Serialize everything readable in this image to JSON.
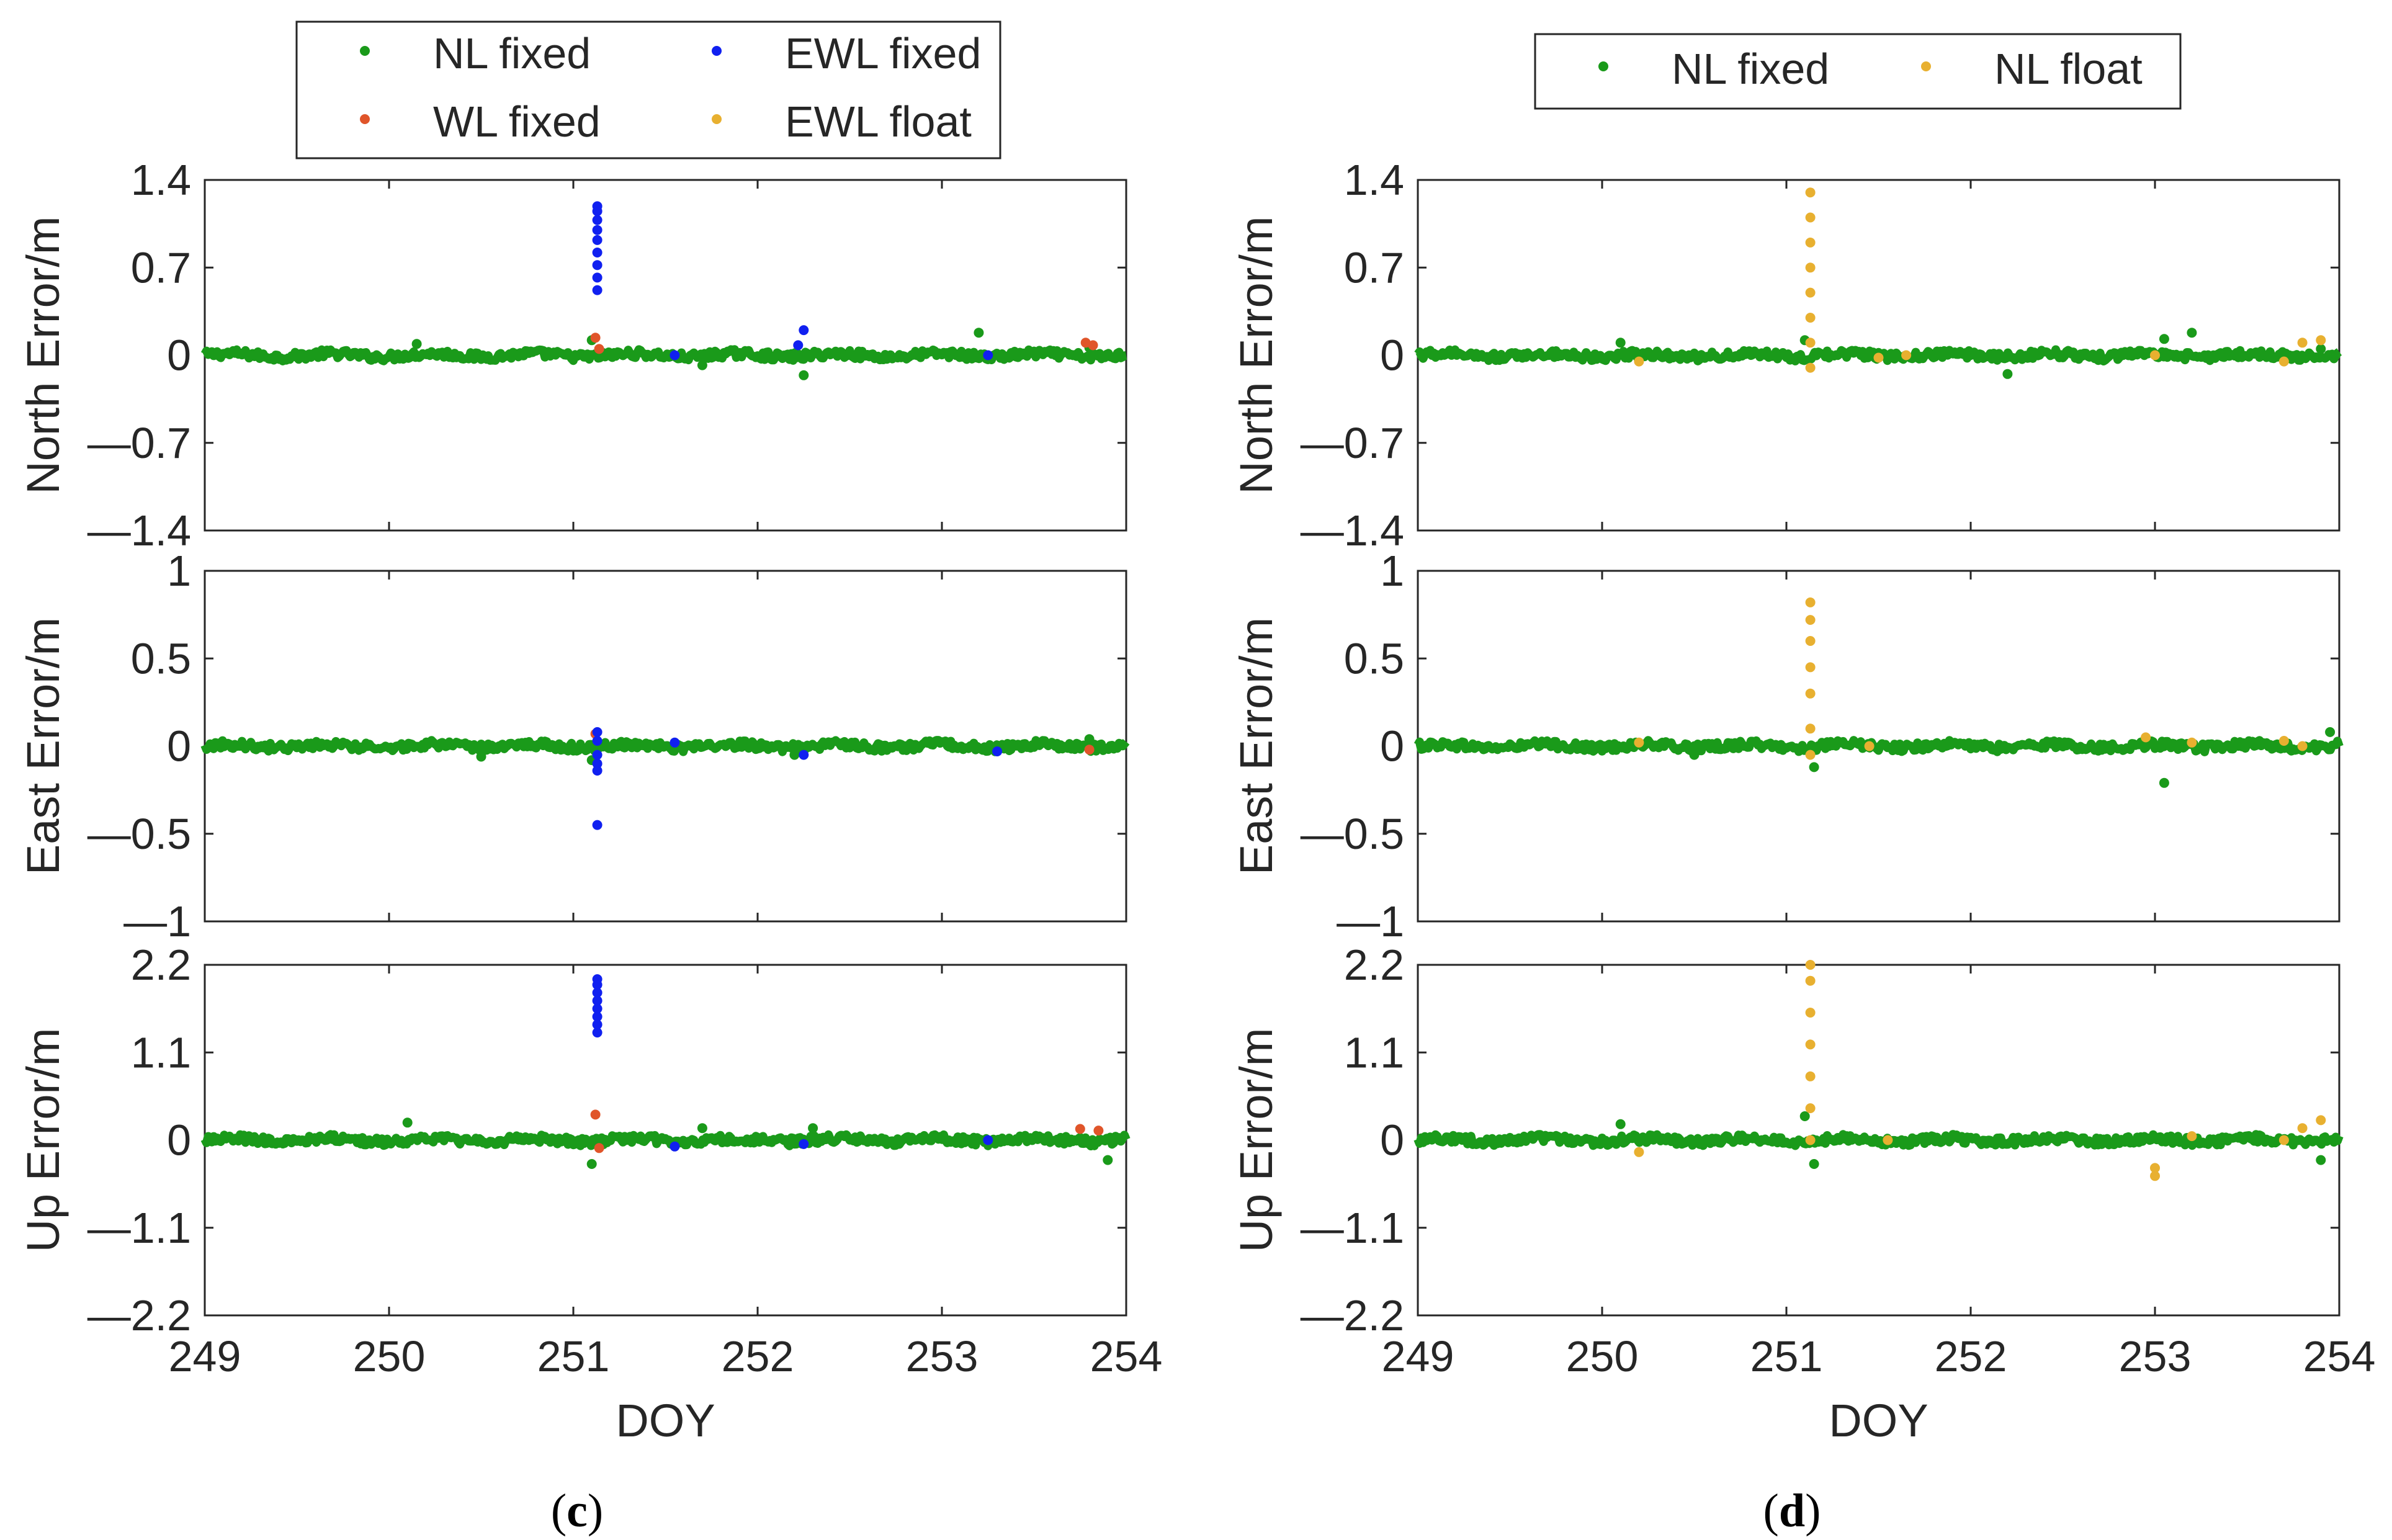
{
  "figure": {
    "captions": [
      "(",
      "c",
      ")",
      "(",
      "d",
      ")"
    ]
  },
  "series_colors": {
    "NL fixed": "#1a9a1a",
    "WL fixed": "#e0552a",
    "EWL fixed": "#1020f0",
    "EWL float": "#e8b030",
    "NL float": "#e8b030"
  },
  "chart_data": [
    {
      "id": "c",
      "type": "scatter",
      "caption": "c",
      "legend": [
        "NL fixed",
        "WL fixed",
        "EWL fixed",
        "EWL float"
      ],
      "xlabel": "DOY",
      "xlim": [
        249,
        254
      ],
      "xticks": [
        "249",
        "250",
        "251",
        "252",
        "253",
        "254"
      ],
      "panels": [
        {
          "ylabel": "North Error/m",
          "ylim": [
            -1.4,
            1.4
          ],
          "yticks": [
            "1.4",
            "0.7",
            "0",
            "—0.7",
            "—1.4"
          ],
          "series": [
            {
              "name": "NL fixed",
              "points": [
                [
                  250.15,
                  0.09
                ],
                [
                  251.1,
                  0.12
                ],
                [
                  251.7,
                  -0.08
                ],
                [
                  252.25,
                  -0.16
                ],
                [
                  253.2,
                  0.18
                ],
                [
                  253.8,
                  0.06
                ]
              ]
            },
            {
              "name": "WL fixed",
              "points": [
                [
                  251.12,
                  0.14
                ],
                [
                  251.14,
                  0.05
                ],
                [
                  253.78,
                  0.1
                ],
                [
                  253.82,
                  0.08
                ]
              ]
            },
            {
              "name": "EWL fixed",
              "points": [
                [
                  251.13,
                  0.52
                ],
                [
                  251.13,
                  0.62
                ],
                [
                  251.13,
                  0.72
                ],
                [
                  251.13,
                  0.82
                ],
                [
                  251.13,
                  0.92
                ],
                [
                  251.13,
                  1.0
                ],
                [
                  251.13,
                  1.08
                ],
                [
                  251.13,
                  1.15
                ],
                [
                  251.13,
                  1.19
                ],
                [
                  251.55,
                  0.0
                ],
                [
                  252.25,
                  0.2
                ],
                [
                  252.22,
                  0.08
                ],
                [
                  253.25,
                  0.0
                ]
              ]
            }
          ]
        },
        {
          "ylabel": "East Error/m",
          "ylim": [
            -1,
            1
          ],
          "yticks": [
            "1",
            "0.5",
            "0",
            "—0.5",
            "—1"
          ],
          "series": [
            {
              "name": "NL fixed",
              "points": [
                [
                  250.5,
                  -0.06
                ],
                [
                  251.1,
                  -0.08
                ],
                [
                  252.2,
                  -0.05
                ],
                [
                  253.8,
                  0.04
                ]
              ]
            },
            {
              "name": "WL fixed",
              "points": [
                [
                  251.12,
                  0.07
                ],
                [
                  253.8,
                  -0.02
                ]
              ]
            },
            {
              "name": "EWL fixed",
              "points": [
                [
                  251.13,
                  0.08
                ],
                [
                  251.13,
                  0.03
                ],
                [
                  251.13,
                  -0.05
                ],
                [
                  251.13,
                  -0.1
                ],
                [
                  251.13,
                  -0.14
                ],
                [
                  251.13,
                  -0.45
                ],
                [
                  251.55,
                  0.02
                ],
                [
                  252.25,
                  -0.05
                ],
                [
                  253.3,
                  -0.03
                ]
              ]
            }
          ]
        },
        {
          "ylabel": "Up Error/m",
          "ylim": [
            -2.2,
            2.2
          ],
          "yticks": [
            "2.2",
            "1.1",
            "0",
            "—1.1",
            "—2.2"
          ],
          "series": [
            {
              "name": "NL fixed",
              "points": [
                [
                  250.1,
                  0.22
                ],
                [
                  251.1,
                  -0.3
                ],
                [
                  251.7,
                  0.15
                ],
                [
                  252.3,
                  0.15
                ],
                [
                  253.9,
                  -0.25
                ]
              ]
            },
            {
              "name": "WL fixed",
              "points": [
                [
                  251.12,
                  0.32
                ],
                [
                  251.14,
                  -0.1
                ],
                [
                  253.75,
                  0.14
                ],
                [
                  253.85,
                  0.12
                ]
              ]
            },
            {
              "name": "EWL fixed",
              "points": [
                [
                  251.13,
                  1.35
                ],
                [
                  251.13,
                  1.45
                ],
                [
                  251.13,
                  1.55
                ],
                [
                  251.13,
                  1.65
                ],
                [
                  251.13,
                  1.75
                ],
                [
                  251.13,
                  1.85
                ],
                [
                  251.13,
                  1.95
                ],
                [
                  251.13,
                  2.02
                ],
                [
                  251.55,
                  -0.08
                ],
                [
                  252.25,
                  -0.05
                ],
                [
                  253.25,
                  0.0
                ]
              ]
            }
          ]
        }
      ]
    },
    {
      "id": "d",
      "type": "scatter",
      "caption": "d",
      "legend": [
        "NL fixed",
        "NL float"
      ],
      "xlabel": "DOY",
      "xlim": [
        249,
        254
      ],
      "xticks": [
        "249",
        "250",
        "251",
        "252",
        "253",
        "254"
      ],
      "panels": [
        {
          "ylabel": "North Error/m",
          "ylim": [
            -1.4,
            1.4
          ],
          "yticks": [
            "1.4",
            "0.7",
            "0",
            "—0.7",
            "—1.4"
          ],
          "series": [
            {
              "name": "NL fixed",
              "points": [
                [
                  250.1,
                  0.1
                ],
                [
                  251.1,
                  0.12
                ],
                [
                  252.2,
                  -0.15
                ],
                [
                  253.05,
                  0.13
                ],
                [
                  253.2,
                  0.18
                ],
                [
                  253.9,
                  0.05
                ]
              ]
            },
            {
              "name": "NL float",
              "points": [
                [
                  250.2,
                  -0.05
                ],
                [
                  251.13,
                  -0.1
                ],
                [
                  251.13,
                  0.1
                ],
                [
                  251.13,
                  0.3
                ],
                [
                  251.13,
                  0.5
                ],
                [
                  251.13,
                  0.7
                ],
                [
                  251.13,
                  0.9
                ],
                [
                  251.13,
                  1.1
                ],
                [
                  251.13,
                  1.3
                ],
                [
                  251.5,
                  -0.02
                ],
                [
                  251.65,
                  0.0
                ],
                [
                  253.0,
                  0.0
                ],
                [
                  253.7,
                  -0.05
                ],
                [
                  253.8,
                  0.1
                ],
                [
                  253.9,
                  0.12
                ]
              ]
            }
          ]
        },
        {
          "ylabel": "East Error/m",
          "ylim": [
            -1,
            1
          ],
          "yticks": [
            "1",
            "0.5",
            "0",
            "—0.5",
            "—1"
          ],
          "series": [
            {
              "name": "NL fixed",
              "points": [
                [
                  250.5,
                  -0.05
                ],
                [
                  251.15,
                  -0.12
                ],
                [
                  253.05,
                  -0.21
                ],
                [
                  253.95,
                  0.08
                ]
              ]
            },
            {
              "name": "NL float",
              "points": [
                [
                  250.2,
                  0.02
                ],
                [
                  251.13,
                  -0.05
                ],
                [
                  251.13,
                  0.1
                ],
                [
                  251.13,
                  0.3
                ],
                [
                  251.13,
                  0.45
                ],
                [
                  251.13,
                  0.6
                ],
                [
                  251.13,
                  0.72
                ],
                [
                  251.13,
                  0.82
                ],
                [
                  251.45,
                  0.0
                ],
                [
                  252.95,
                  0.05
                ],
                [
                  253.2,
                  0.02
                ],
                [
                  253.7,
                  0.03
                ],
                [
                  253.8,
                  0.0
                ]
              ]
            }
          ]
        },
        {
          "ylabel": "Up Error/m",
          "ylim": [
            -2.2,
            2.2
          ],
          "yticks": [
            "2.2",
            "1.1",
            "0",
            "—1.1",
            "—2.2"
          ],
          "series": [
            {
              "name": "NL fixed",
              "points": [
                [
                  250.1,
                  0.2
                ],
                [
                  251.1,
                  0.3
                ],
                [
                  251.15,
                  -0.3
                ],
                [
                  253.9,
                  -0.25
                ]
              ]
            },
            {
              "name": "NL float",
              "points": [
                [
                  250.2,
                  -0.15
                ],
                [
                  251.13,
                  0.0
                ],
                [
                  251.13,
                  0.4
                ],
                [
                  251.13,
                  0.8
                ],
                [
                  251.13,
                  1.2
                ],
                [
                  251.13,
                  1.6
                ],
                [
                  251.13,
                  2.0
                ],
                [
                  251.13,
                  2.2
                ],
                [
                  251.55,
                  0.0
                ],
                [
                  253.0,
                  -0.35
                ],
                [
                  253.0,
                  -0.45
                ],
                [
                  253.2,
                  0.05
                ],
                [
                  253.7,
                  0.0
                ],
                [
                  253.8,
                  0.15
                ],
                [
                  253.9,
                  0.25
                ]
              ]
            }
          ]
        }
      ]
    }
  ]
}
